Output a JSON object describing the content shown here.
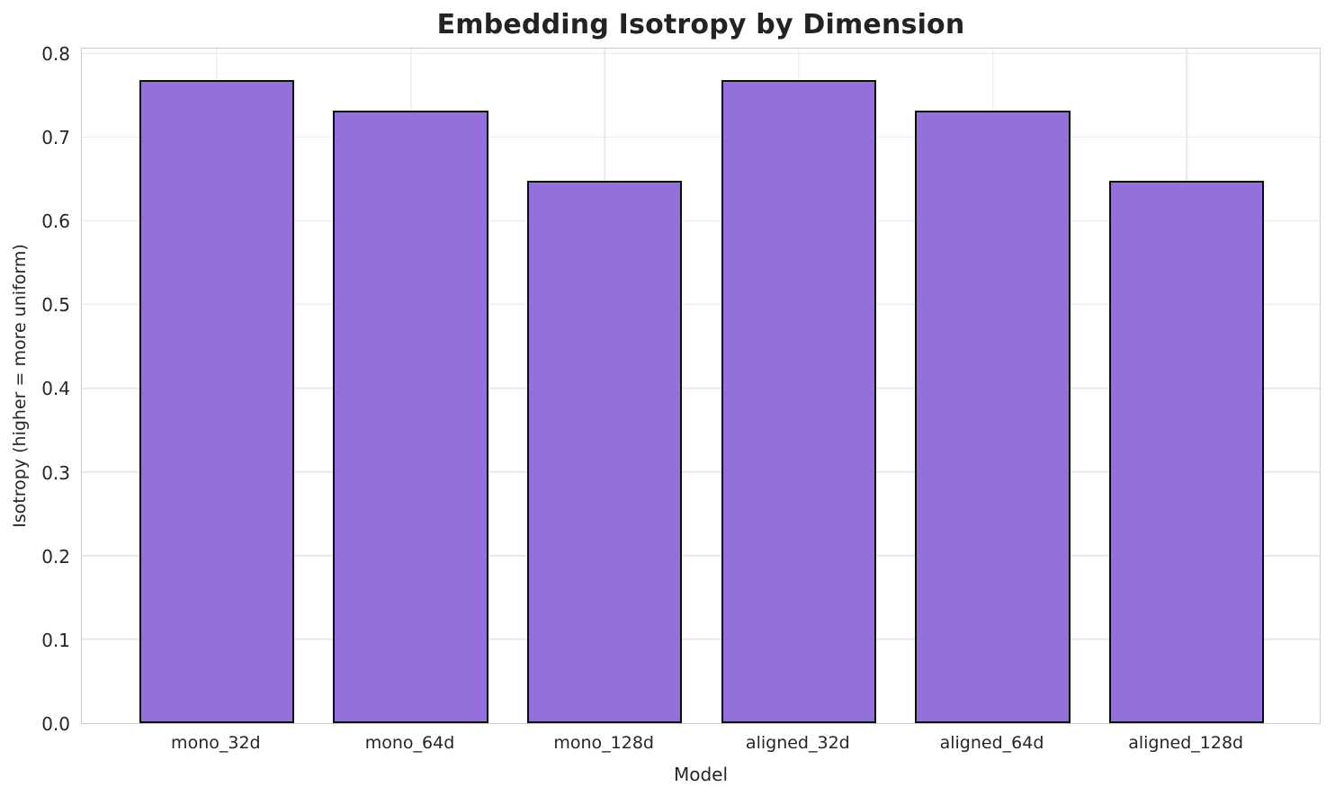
{
  "chart_data": {
    "type": "bar",
    "title": "Embedding Isotropy by Dimension",
    "xlabel": "Model",
    "ylabel": "Isotropy (higher = more uniform)",
    "categories": [
      "mono_32d",
      "mono_64d",
      "mono_128d",
      "aligned_32d",
      "aligned_64d",
      "aligned_128d"
    ],
    "values": [
      0.768,
      0.731,
      0.647,
      0.768,
      0.731,
      0.647
    ],
    "ylim": [
      0,
      0.8075
    ],
    "yticks": [
      0.0,
      0.1,
      0.2,
      0.3,
      0.4,
      0.5,
      0.6,
      0.7,
      0.8
    ],
    "ytick_labels": [
      "0.0",
      "0.1",
      "0.2",
      "0.3",
      "0.4",
      "0.5",
      "0.6",
      "0.7",
      "0.8"
    ],
    "grid": true,
    "legend": "none",
    "bar_color": "#9370DB",
    "bar_edge_color": "#0d0d0d",
    "grid_color": "#e9e9e9",
    "spine_color": "#cccccc",
    "text_color": "#262626",
    "bar_width_fraction": 0.8
  }
}
